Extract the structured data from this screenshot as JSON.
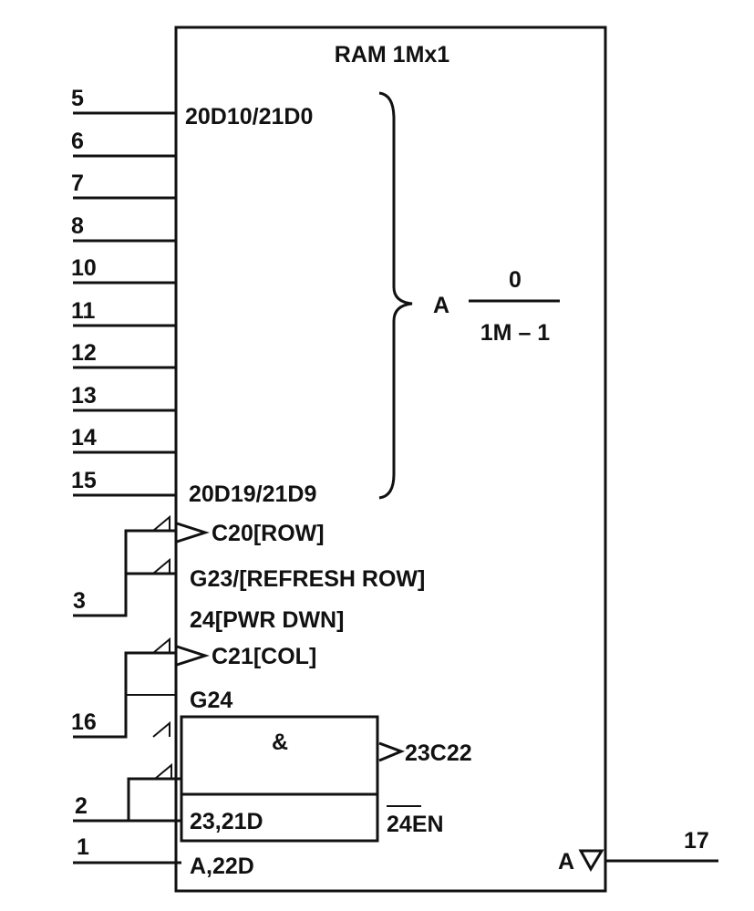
{
  "title": "RAM 1Mx1",
  "address_pins": [
    "5",
    "6",
    "7",
    "8",
    "10",
    "11",
    "12",
    "13",
    "14",
    "15"
  ],
  "address_first_label": "20D10/21D0",
  "address_last_label": "20D19/21D9",
  "address_group": {
    "prefix": "A",
    "numerator": "0",
    "denominator": "1M – 1"
  },
  "control": {
    "c20_label": "C20[ROW]",
    "g23_label": "G23/[REFRESH ROW]",
    "pwr_label": "24[PWR DWN]",
    "c21_label": "C21[COL]",
    "g24_label": "G24",
    "and_symbol": "&",
    "c22_label": "23C22",
    "d23_label": "23,21D",
    "en_prefix": "24",
    "en_suffix": "EN",
    "a22_label": "A,22D",
    "output_label": "A",
    "pin_ras": "3",
    "pin_cas": "16",
    "pin_w": "2",
    "pin_d": "1",
    "pin_q": "17"
  }
}
